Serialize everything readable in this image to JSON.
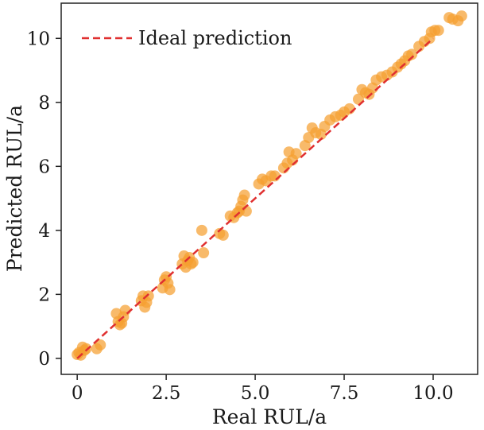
{
  "chart_data": {
    "type": "scatter",
    "xlabel": "Real RUL/a",
    "ylabel": "Predicted RUL/a",
    "xlim": [
      -0.45,
      11.25
    ],
    "ylim": [
      -0.5,
      11.1
    ],
    "x_ticks": [
      0,
      2.5,
      5.0,
      7.5,
      10.0
    ],
    "x_tick_labels": [
      "0",
      "2.5",
      "5.0",
      "7.5",
      "10.0"
    ],
    "y_ticks": [
      0,
      2,
      4,
      6,
      8,
      10
    ],
    "y_tick_labels": [
      "0",
      "2",
      "4",
      "6",
      "8",
      "10"
    ],
    "grid": false,
    "legend": {
      "position": "top-left",
      "entries": [
        "Ideal prediction"
      ]
    },
    "reference_line": {
      "name": "Ideal prediction",
      "x": [
        0,
        10.0
      ],
      "y": [
        0,
        10.0
      ],
      "color": "#e03030",
      "style": "dashed"
    },
    "point_color": "#f5a030",
    "points": [
      [
        0.0,
        0.12
      ],
      [
        0.05,
        0.18
      ],
      [
        0.1,
        0.1
      ],
      [
        0.15,
        0.35
      ],
      [
        0.2,
        0.25
      ],
      [
        0.25,
        0.3
      ],
      [
        0.55,
        0.3
      ],
      [
        0.65,
        0.42
      ],
      [
        1.1,
        1.4
      ],
      [
        1.15,
        1.15
      ],
      [
        1.2,
        1.05
      ],
      [
        1.25,
        1.1
      ],
      [
        1.3,
        1.3
      ],
      [
        1.35,
        1.5
      ],
      [
        1.8,
        1.8
      ],
      [
        1.85,
        1.95
      ],
      [
        1.9,
        1.6
      ],
      [
        1.95,
        1.75
      ],
      [
        2.0,
        1.95
      ],
      [
        2.4,
        2.2
      ],
      [
        2.45,
        2.45
      ],
      [
        2.5,
        2.55
      ],
      [
        2.55,
        2.35
      ],
      [
        2.6,
        2.15
      ],
      [
        2.95,
        2.95
      ],
      [
        3.0,
        3.2
      ],
      [
        3.05,
        2.85
      ],
      [
        3.1,
        3.05
      ],
      [
        3.15,
        3.15
      ],
      [
        3.2,
        2.95
      ],
      [
        3.25,
        3.0
      ],
      [
        3.5,
        4.0
      ],
      [
        3.55,
        3.3
      ],
      [
        4.0,
        3.9
      ],
      [
        4.1,
        3.85
      ],
      [
        4.3,
        4.45
      ],
      [
        4.4,
        4.4
      ],
      [
        4.5,
        4.55
      ],
      [
        4.55,
        4.6
      ],
      [
        4.6,
        4.75
      ],
      [
        4.65,
        4.95
      ],
      [
        4.7,
        5.1
      ],
      [
        4.75,
        4.6
      ],
      [
        5.1,
        5.45
      ],
      [
        5.2,
        5.6
      ],
      [
        5.3,
        5.55
      ],
      [
        5.45,
        5.7
      ],
      [
        5.55,
        5.7
      ],
      [
        5.8,
        5.95
      ],
      [
        5.9,
        6.1
      ],
      [
        5.95,
        6.45
      ],
      [
        6.05,
        6.2
      ],
      [
        6.15,
        6.4
      ],
      [
        6.4,
        6.65
      ],
      [
        6.5,
        6.9
      ],
      [
        6.6,
        7.2
      ],
      [
        6.7,
        7.05
      ],
      [
        6.85,
        7.0
      ],
      [
        6.95,
        7.25
      ],
      [
        7.1,
        7.45
      ],
      [
        7.25,
        7.55
      ],
      [
        7.4,
        7.6
      ],
      [
        7.5,
        7.7
      ],
      [
        7.65,
        7.8
      ],
      [
        7.9,
        8.1
      ],
      [
        8.0,
        8.4
      ],
      [
        8.1,
        8.3
      ],
      [
        8.2,
        8.25
      ],
      [
        8.3,
        8.45
      ],
      [
        8.4,
        8.7
      ],
      [
        8.55,
        8.8
      ],
      [
        8.7,
        8.85
      ],
      [
        8.85,
        8.95
      ],
      [
        9.0,
        9.1
      ],
      [
        9.1,
        9.2
      ],
      [
        9.2,
        9.3
      ],
      [
        9.3,
        9.45
      ],
      [
        9.4,
        9.5
      ],
      [
        9.6,
        9.75
      ],
      [
        9.75,
        9.9
      ],
      [
        9.9,
        10.0
      ],
      [
        9.95,
        10.2
      ],
      [
        10.05,
        10.25
      ],
      [
        10.15,
        10.25
      ],
      [
        10.45,
        10.65
      ],
      [
        10.55,
        10.6
      ],
      [
        10.7,
        10.55
      ],
      [
        10.8,
        10.7
      ]
    ]
  }
}
